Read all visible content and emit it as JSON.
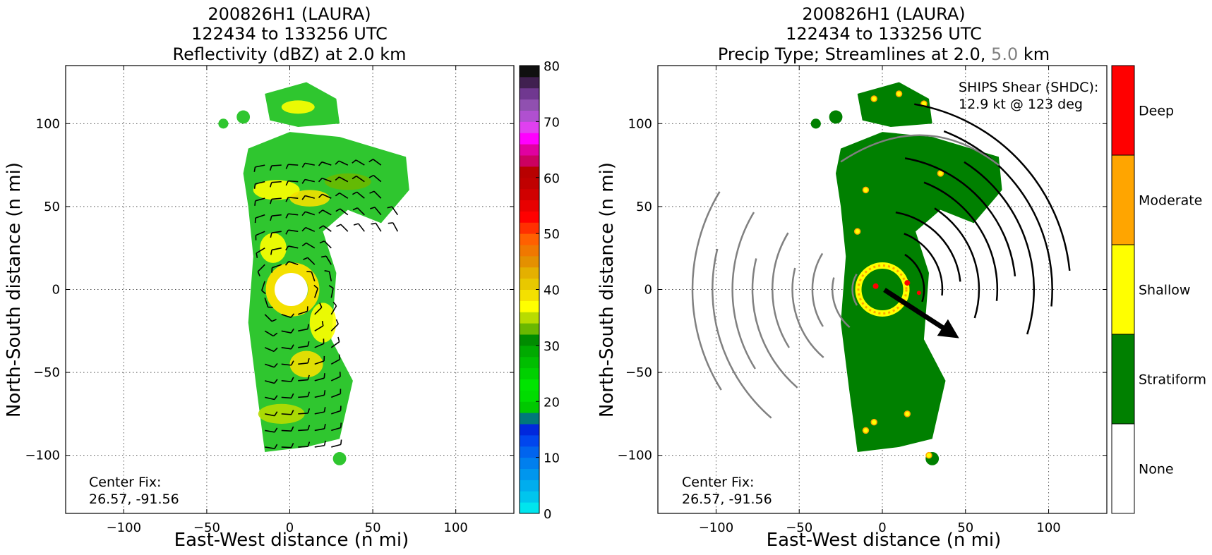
{
  "left_panel": {
    "title_lines": [
      "200826H1 (LAURA)",
      "122434 to 133256 UTC",
      "Reflectivity (dBZ) at 2.0 km"
    ],
    "xlabel": "East-West distance (n mi)",
    "ylabel": "North-South distance (n mi)",
    "center_fix_label": "Center Fix:",
    "center_fix_value": "26.57, -91.56"
  },
  "right_panel": {
    "title_lines": [
      "200826H1 (LAURA)",
      "122434 to 133256 UTC"
    ],
    "title3_a": "Precip Type; Streamlines at 2.0,",
    "title3_b": "5.0",
    "title3_c": "km",
    "xlabel": "East-West distance (n mi)",
    "ylabel": "North-South distance (n mi)",
    "center_fix_label": "Center Fix:",
    "center_fix_value": "26.57, -91.56",
    "shear_label": "SHIPS Shear (SHDC):",
    "shear_value": "12.9 kt @ 123 deg"
  },
  "colors": {
    "stratiform": "#008000",
    "shallow": "#ffff00",
    "moderate": "#ffa500",
    "deep": "#ff0000",
    "streamline_2km": "#000000",
    "streamline_5km": "#808080"
  },
  "chart_data": [
    {
      "type": "heatmap",
      "title": "Reflectivity (dBZ) at 2.0 km",
      "xlabel": "East-West distance (n mi)",
      "ylabel": "North-South distance (n mi)",
      "xlim": [
        -135,
        135
      ],
      "ylim": [
        -135,
        135
      ],
      "xticks": [
        -100,
        -50,
        0,
        50,
        100
      ],
      "yticks": [
        -100,
        -50,
        0,
        50,
        100
      ],
      "tick_labels_x": [
        "−100",
        "−50",
        "0",
        "50",
        "100"
      ],
      "tick_labels_y": [
        "−100",
        "−50",
        "0",
        "50",
        "100"
      ],
      "grid": true,
      "colorbar": {
        "min": 0,
        "max": 80,
        "step": 2.5,
        "ticks": [
          0,
          10,
          20,
          30,
          40,
          50,
          60,
          70,
          80
        ],
        "tick_labels": [
          "0",
          "10",
          "20",
          "30",
          "40",
          "50",
          "60",
          "70",
          "80"
        ],
        "colors": [
          "#00e5ee",
          "#00c5ee",
          "#00adee",
          "#0096ee",
          "#007fee",
          "#0064ee",
          "#0046ee",
          "#0028dd",
          "#00787a",
          "#00c800",
          "#00dc00",
          "#00e400",
          "#00d000",
          "#00be00",
          "#00aa00",
          "#008c00",
          "#6ab800",
          "#b8dc00",
          "#ffff00",
          "#f4e000",
          "#e8c800",
          "#e4b000",
          "#e49000",
          "#f07800",
          "#ff6000",
          "#ff3000",
          "#ff0000",
          "#e80000",
          "#d00000",
          "#c00000",
          "#b80000",
          "#cc0060",
          "#e000a0",
          "#ff00ff",
          "#e040f0",
          "#b050d0",
          "#9050b0",
          "#703890",
          "#402050",
          "#101010"
        ]
      },
      "storm_center": [
        0,
        0
      ],
      "eye_radius": 10,
      "wind_barbs": true
    },
    {
      "type": "heatmap",
      "title": "Precip Type; Streamlines at 2.0, 5.0 km",
      "xlabel": "East-West distance (n mi)",
      "ylabel": "North-South distance (n mi)",
      "xlim": [
        -135,
        135
      ],
      "ylim": [
        -135,
        135
      ],
      "xticks": [
        -100,
        -50,
        0,
        50,
        100
      ],
      "yticks": [
        -100,
        -50,
        0,
        50,
        100
      ],
      "tick_labels_x": [
        "−100",
        "−50",
        "0",
        "50",
        "100"
      ],
      "tick_labels_y": [
        "−100",
        "−50",
        "0",
        "50",
        "100"
      ],
      "grid": true,
      "colorbar": {
        "categories": [
          "None",
          "Stratiform",
          "Shallow",
          "Moderate",
          "Deep"
        ],
        "colors": [
          "#ffffff",
          "#008000",
          "#ffff00",
          "#ffa500",
          "#ff0000"
        ]
      },
      "shear": {
        "magnitude_kt": 12.9,
        "direction_deg": 123
      },
      "series": [
        {
          "name": "2.0",
          "color": "#000000"
        },
        {
          "name": "5.0",
          "color": "#808080"
        }
      ]
    }
  ]
}
